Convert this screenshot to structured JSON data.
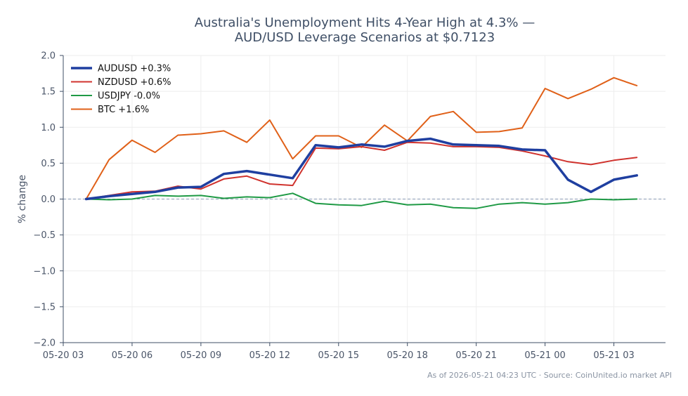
{
  "chart_data": {
    "type": "line",
    "title": "Australia's Unemployment Hits 4-Year High at 4.3% —\nAUD/USD Leverage Scenarios at $0.7123",
    "xlabel": "",
    "ylabel": "% change",
    "ylim": [
      -2.0,
      2.0
    ],
    "yticks": [
      "2.0",
      "1.5",
      "1.0",
      "0.5",
      "0.0",
      "−0.5",
      "−1.0",
      "−1.5",
      "−2.0"
    ],
    "ytick_values": [
      2.0,
      1.5,
      1.0,
      0.5,
      0.0,
      -0.5,
      -1.0,
      -1.5,
      -2.0
    ],
    "xlim": [
      "2026-05-20 03:00",
      "2026-05-21 05:15"
    ],
    "xticks": [
      "05-20 03",
      "05-20 06",
      "05-20 09",
      "05-20 12",
      "05-20 15",
      "05-20 18",
      "05-20 21",
      "05-21 00",
      "05-21 03"
    ],
    "xtick_values": [
      "2026-05-20 03:00",
      "2026-05-20 06:00",
      "2026-05-20 09:00",
      "2026-05-20 12:00",
      "2026-05-20 15:00",
      "2026-05-20 18:00",
      "2026-05-20 21:00",
      "2026-05-21 00:00",
      "2026-05-21 03:00"
    ],
    "x": [
      "2026-05-20 04:00",
      "2026-05-20 05:00",
      "2026-05-20 06:00",
      "2026-05-20 07:00",
      "2026-05-20 08:00",
      "2026-05-20 09:00",
      "2026-05-20 10:00",
      "2026-05-20 11:00",
      "2026-05-20 12:00",
      "2026-05-20 13:00",
      "2026-05-20 14:00",
      "2026-05-20 15:00",
      "2026-05-20 16:00",
      "2026-05-20 17:00",
      "2026-05-20 18:00",
      "2026-05-20 19:00",
      "2026-05-20 20:00",
      "2026-05-20 21:00",
      "2026-05-20 22:00",
      "2026-05-20 23:00",
      "2026-05-21 00:00",
      "2026-05-21 01:00",
      "2026-05-21 02:00",
      "2026-05-21 03:00",
      "2026-05-21 04:00"
    ],
    "series": [
      {
        "name": "AUDUSD +0.3%",
        "color": "#1f3fa0",
        "width": 3.5,
        "values": [
          0.0,
          0.04,
          0.07,
          0.1,
          0.16,
          0.17,
          0.35,
          0.39,
          0.34,
          0.29,
          0.75,
          0.72,
          0.76,
          0.73,
          0.81,
          0.84,
          0.76,
          0.75,
          0.74,
          0.69,
          0.68,
          0.27,
          0.1,
          0.27,
          0.33
        ]
      },
      {
        "name": "NZDUSD +0.6%",
        "color": "#d0332e",
        "width": 2,
        "values": [
          0.0,
          0.05,
          0.1,
          0.11,
          0.18,
          0.14,
          0.28,
          0.32,
          0.21,
          0.19,
          0.71,
          0.7,
          0.73,
          0.68,
          0.79,
          0.78,
          0.73,
          0.73,
          0.72,
          0.67,
          0.6,
          0.52,
          0.48,
          0.54,
          0.58
        ]
      },
      {
        "name": "USDJPY -0.0%",
        "color": "#1f9a45",
        "width": 2,
        "values": [
          0.0,
          -0.01,
          0.0,
          0.05,
          0.04,
          0.05,
          0.01,
          0.03,
          0.02,
          0.08,
          -0.06,
          -0.08,
          -0.09,
          -0.03,
          -0.08,
          -0.07,
          -0.12,
          -0.13,
          -0.07,
          -0.05,
          -0.07,
          -0.05,
          0.0,
          -0.01,
          0.0
        ]
      },
      {
        "name": "BTC +1.6%",
        "color": "#e06018",
        "width": 2,
        "values": [
          0.0,
          0.55,
          0.82,
          0.65,
          0.89,
          0.91,
          0.95,
          0.79,
          1.1,
          0.56,
          0.88,
          0.88,
          0.72,
          1.03,
          0.81,
          1.15,
          1.22,
          0.93,
          0.94,
          0.99,
          1.54,
          1.4,
          1.53,
          1.69,
          1.58
        ]
      }
    ],
    "baseline": 0.0,
    "grid": true,
    "legend": "top-left",
    "footnote": "As of 2026-05-21 04:23 UTC · Source: CoinUnited.io market API"
  }
}
